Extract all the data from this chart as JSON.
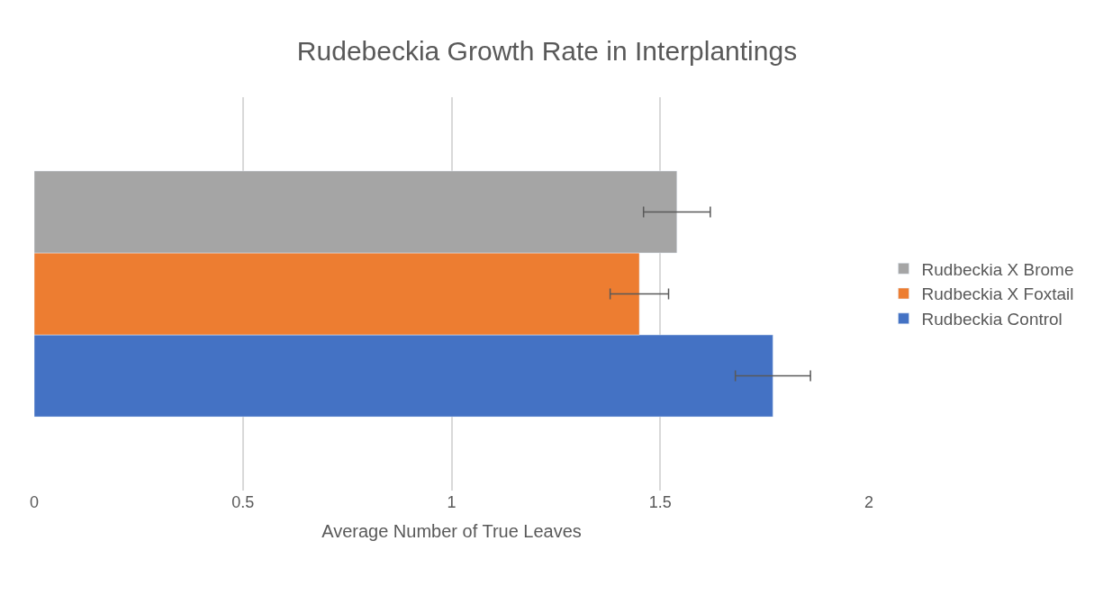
{
  "chart_data": {
    "type": "bar",
    "orientation": "horizontal",
    "title": "Rudebeckia Growth Rate in Interplantings",
    "xlabel": "Average Number of True Leaves",
    "categories": [
      null
    ],
    "series": [
      {
        "name": "Rudbeckia Control",
        "color": "#4472c4",
        "values": [
          1.77
        ],
        "errors": [
          0.09
        ]
      },
      {
        "name": "Rudbeckia X Foxtail",
        "color": "#ed7d31",
        "values": [
          1.45
        ],
        "errors": [
          0.07
        ]
      },
      {
        "name": "Rudbeckia X Brome",
        "color": "#a5a5a5",
        "values": [
          1.54
        ],
        "errors": [
          0.08
        ]
      }
    ],
    "xlim": [
      0,
      2
    ],
    "xticks": [
      0,
      0.5,
      1,
      1.5,
      2
    ],
    "grid": "x",
    "legend": "right"
  }
}
